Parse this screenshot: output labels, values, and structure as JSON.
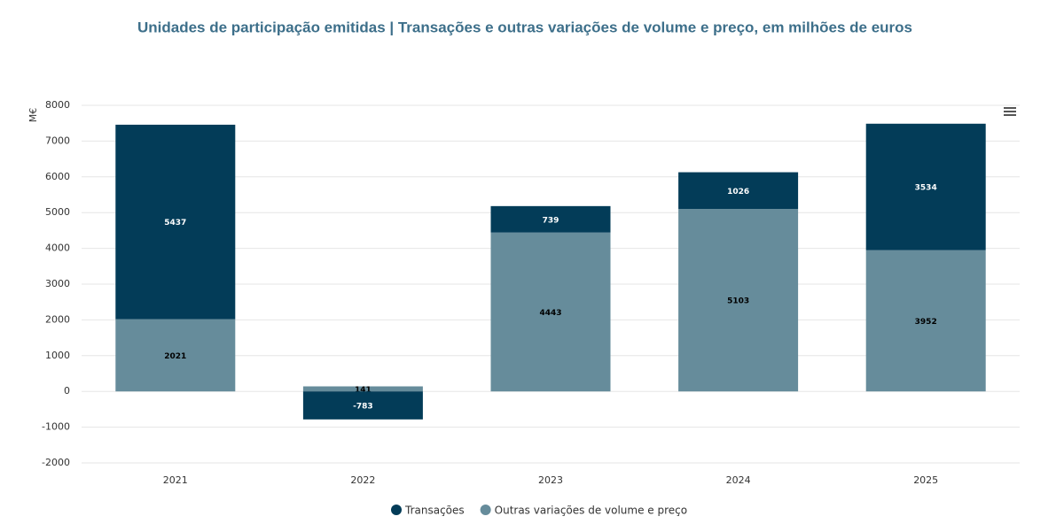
{
  "chart_data": {
    "type": "stacked_bar",
    "title": "Unidades de participação emitidas | Transações e outras variações de volume e preço, em milhões de euros",
    "y_label": "M€",
    "categories": [
      "2021",
      "2022",
      "2023",
      "2024",
      "2025"
    ],
    "series": [
      {
        "name": "Transações",
        "color": "#033c58",
        "values": [
          5437,
          -783,
          739,
          1026,
          3534
        ]
      },
      {
        "name": "Outras variações de volume e preço",
        "color": "#668c9b",
        "values": [
          2021,
          141,
          4443,
          5103,
          3952
        ]
      }
    ],
    "ylim": [
      -2000,
      8000
    ],
    "yticks": [
      -2000,
      -1000,
      0,
      1000,
      2000,
      3000,
      4000,
      5000,
      6000,
      7000,
      8000
    ],
    "grid": true
  }
}
